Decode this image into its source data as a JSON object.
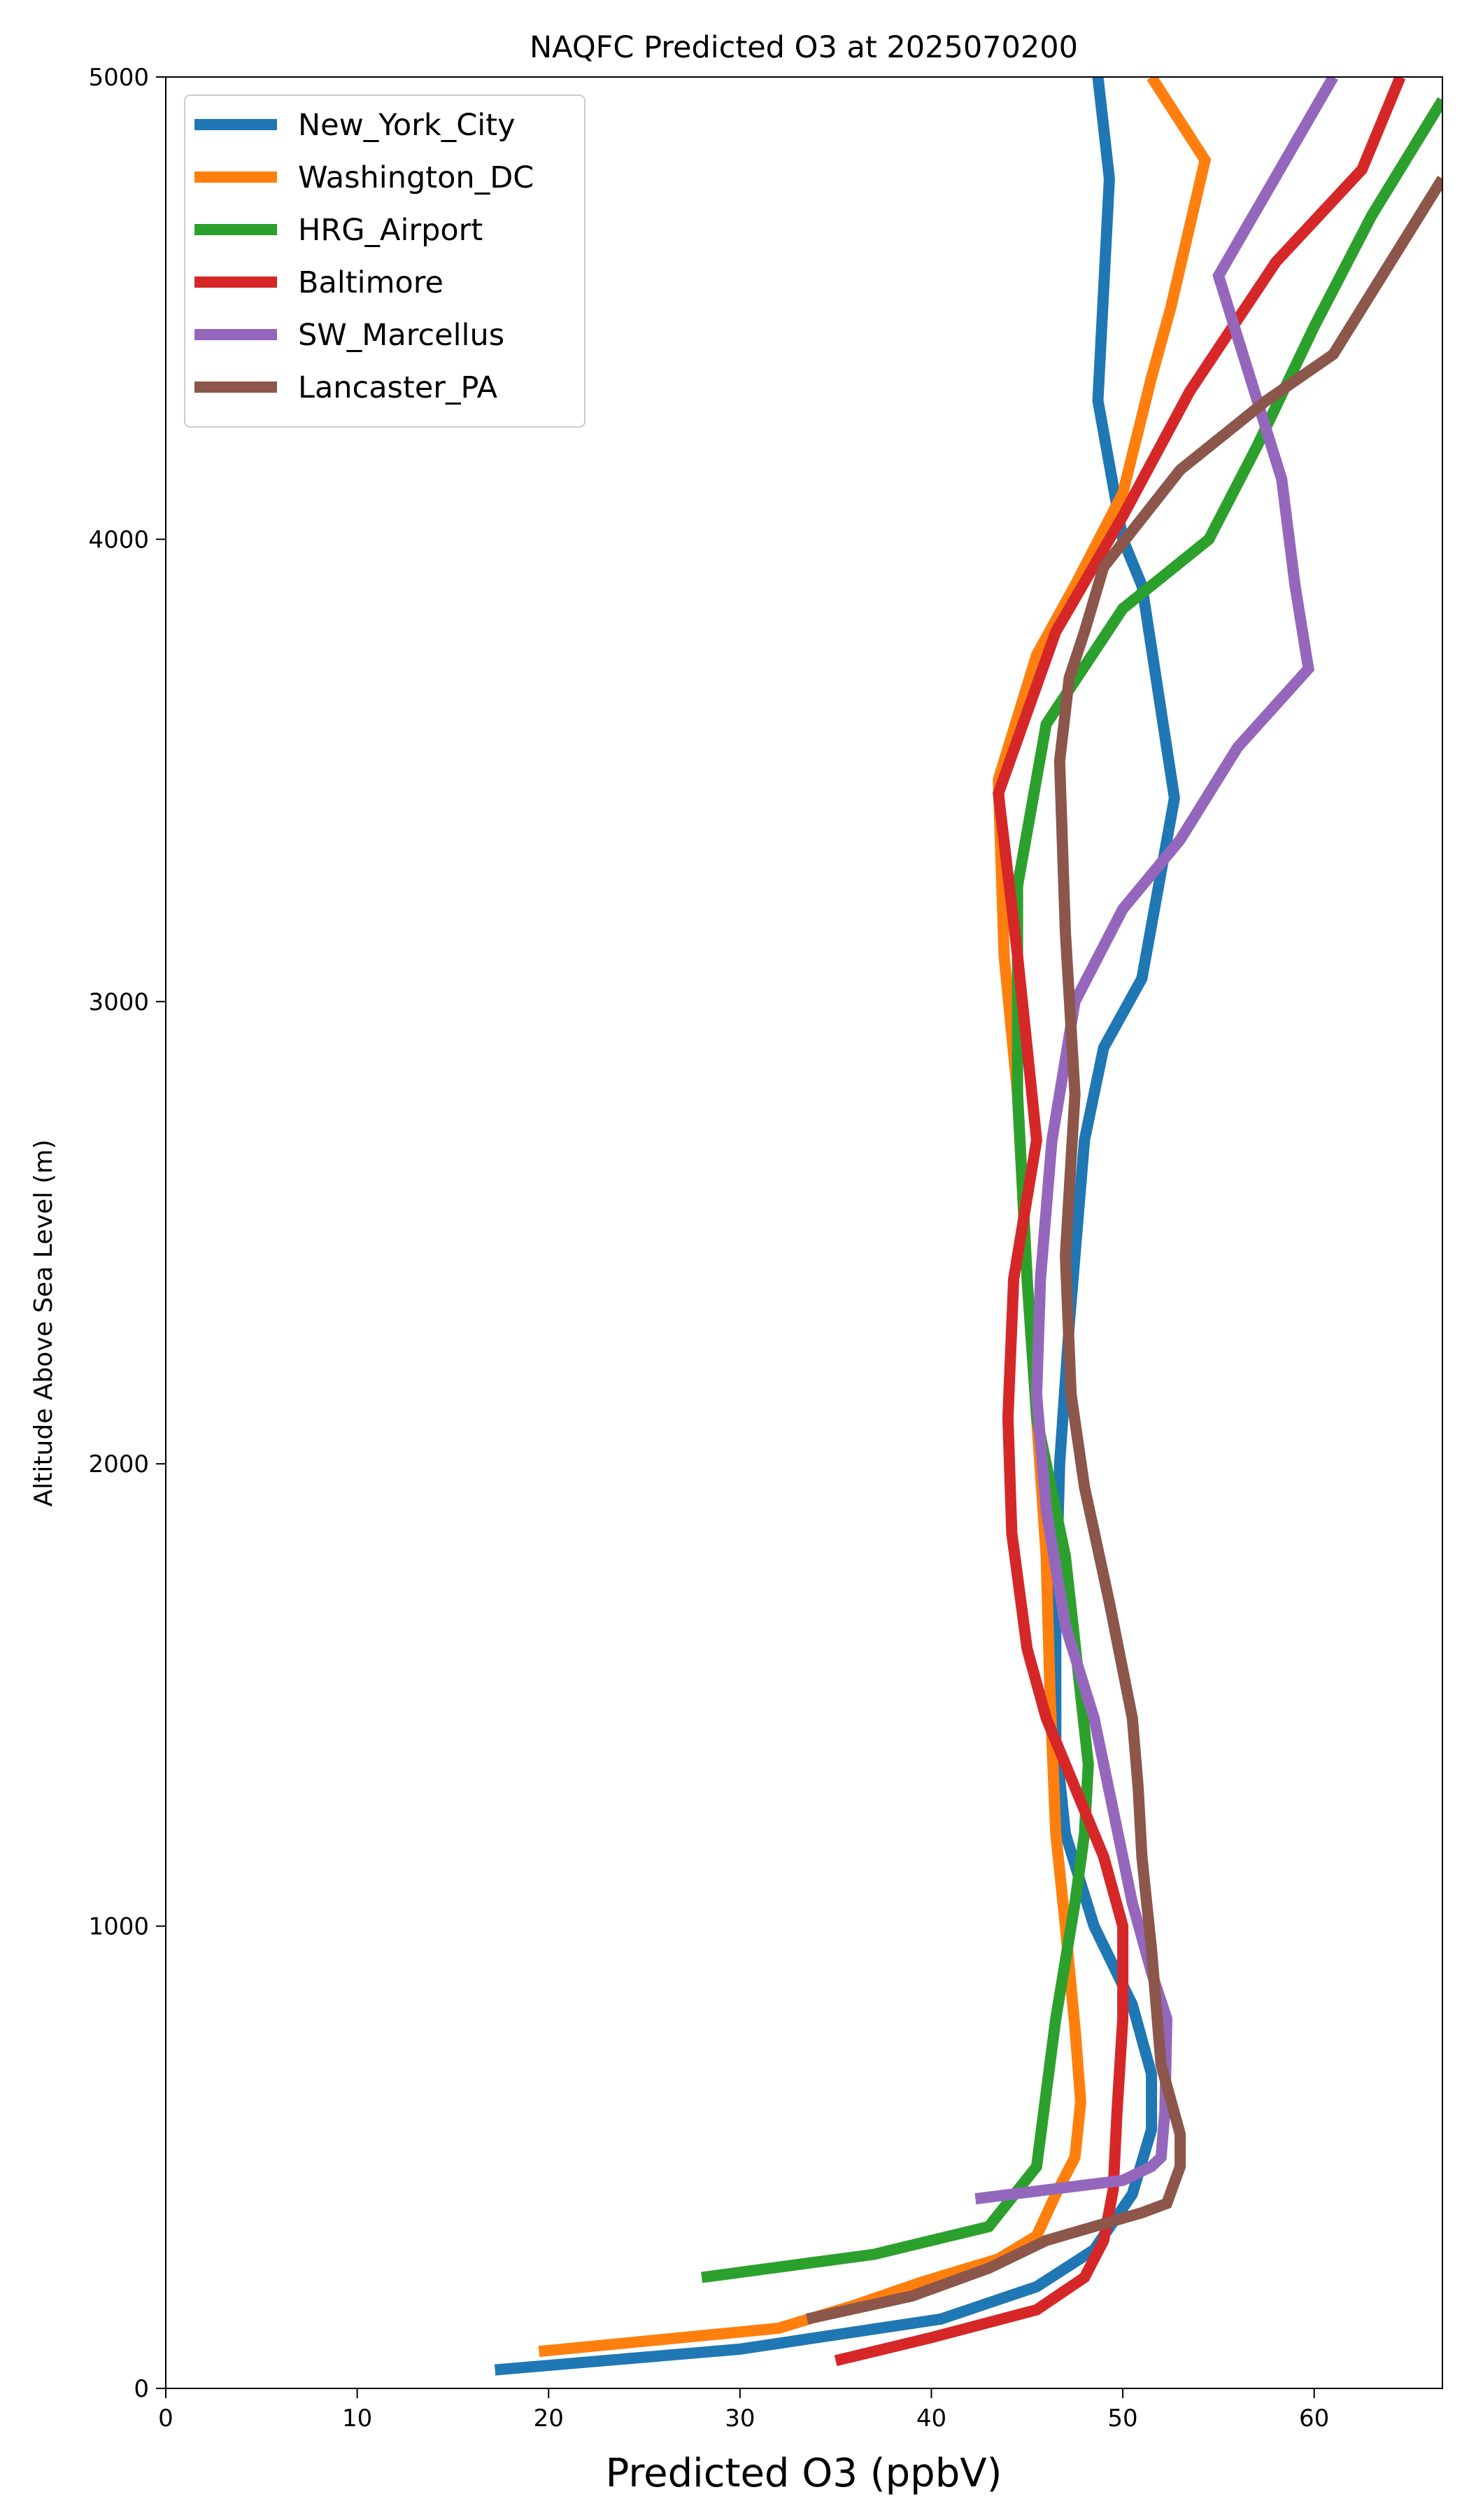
{
  "chart_data": {
    "type": "line",
    "title": "NAQFC Predicted O3 at 2025070200",
    "xlabel": "Predicted O3 (ppbV)",
    "ylabel": "Altitude Above Sea Level (m)",
    "xlim": [
      0,
      66.7
    ],
    "ylim": [
      0,
      5000
    ],
    "xticks": [
      0,
      10,
      20,
      30,
      40,
      50,
      60
    ],
    "yticks": [
      0,
      1000,
      2000,
      3000,
      4000,
      5000
    ],
    "grid": false,
    "legend_position": "top-left",
    "series": [
      {
        "name": "New_York_City",
        "color": "#1f77b4",
        "points": [
          [
            17.2,
            40
          ],
          [
            30,
            85
          ],
          [
            40.5,
            150
          ],
          [
            45.5,
            220
          ],
          [
            48.5,
            300
          ],
          [
            50.5,
            420
          ],
          [
            51.5,
            560
          ],
          [
            51.5,
            680
          ],
          [
            50.5,
            830
          ],
          [
            48.5,
            1000
          ],
          [
            47,
            1200
          ],
          [
            46.5,
            1400
          ],
          [
            46.5,
            1700
          ],
          [
            46.7,
            2000
          ],
          [
            47.2,
            2300
          ],
          [
            48,
            2700
          ],
          [
            49,
            2900
          ],
          [
            51,
            3050
          ],
          [
            52.7,
            3440
          ],
          [
            51,
            3900
          ],
          [
            50,
            4000
          ],
          [
            48.7,
            4300
          ],
          [
            49.3,
            4780
          ],
          [
            48.7,
            5000
          ]
        ]
      },
      {
        "name": "Washington_DC",
        "color": "#ff7f0e",
        "points": [
          [
            19.5,
            80
          ],
          [
            32,
            130
          ],
          [
            36,
            180
          ],
          [
            39.5,
            230
          ],
          [
            43.5,
            280
          ],
          [
            45.5,
            330
          ],
          [
            46.5,
            420
          ],
          [
            47.5,
            500
          ],
          [
            47.8,
            620
          ],
          [
            47.5,
            780
          ],
          [
            47,
            1000
          ],
          [
            46.5,
            1200
          ],
          [
            46.2,
            1500
          ],
          [
            46,
            1800
          ],
          [
            45.5,
            2100
          ],
          [
            45,
            2400
          ],
          [
            44.5,
            2800
          ],
          [
            43.8,
            3100
          ],
          [
            43.5,
            3480
          ],
          [
            45.5,
            3750
          ],
          [
            47.5,
            3900
          ],
          [
            50,
            4100
          ],
          [
            51.5,
            4350
          ],
          [
            52.5,
            4500
          ],
          [
            54.3,
            4820
          ],
          [
            51.5,
            5000
          ]
        ]
      },
      {
        "name": "HRG_Airport",
        "color": "#2ca02c",
        "points": [
          [
            28,
            240
          ],
          [
            37,
            290
          ],
          [
            43,
            350
          ],
          [
            45.5,
            480
          ],
          [
            46.5,
            800
          ],
          [
            47.5,
            1050
          ],
          [
            48,
            1200
          ],
          [
            48.2,
            1350
          ],
          [
            47,
            1800
          ],
          [
            45.5,
            2100
          ],
          [
            45,
            2400
          ],
          [
            44.5,
            2800
          ],
          [
            44.5,
            3250
          ],
          [
            46,
            3600
          ],
          [
            50,
            3850
          ],
          [
            54.5,
            4000
          ],
          [
            57,
            4200
          ],
          [
            60,
            4460
          ],
          [
            63,
            4700
          ],
          [
            66.7,
            4950
          ]
        ]
      },
      {
        "name": "Baltimore",
        "color": "#d62728",
        "points": [
          [
            35,
            60
          ],
          [
            40,
            110
          ],
          [
            45.5,
            170
          ],
          [
            48,
            240
          ],
          [
            49,
            320
          ],
          [
            49.5,
            430
          ],
          [
            49.7,
            600
          ],
          [
            50,
            800
          ],
          [
            50,
            1000
          ],
          [
            49,
            1150
          ],
          [
            47.5,
            1300
          ],
          [
            46,
            1450
          ],
          [
            45,
            1600
          ],
          [
            44.2,
            1850
          ],
          [
            44,
            2100
          ],
          [
            44.3,
            2400
          ],
          [
            45.5,
            2700
          ],
          [
            45,
            2900
          ],
          [
            44.5,
            3100
          ],
          [
            43.5,
            3450
          ],
          [
            46.5,
            3800
          ],
          [
            50,
            4050
          ],
          [
            53.5,
            4320
          ],
          [
            58,
            4600
          ],
          [
            62.5,
            4800
          ],
          [
            64.5,
            5000
          ]
        ]
      },
      {
        "name": "SW_Marcellus",
        "color": "#9467bd",
        "points": [
          [
            42.3,
            410
          ],
          [
            50,
            450
          ],
          [
            51.5,
            480
          ],
          [
            52,
            500
          ],
          [
            52.2,
            600
          ],
          [
            52.3,
            800
          ],
          [
            51.5,
            900
          ],
          [
            50.5,
            1050
          ],
          [
            49.5,
            1250
          ],
          [
            48.5,
            1450
          ],
          [
            47,
            1650
          ],
          [
            46,
            1900
          ],
          [
            45.5,
            2150
          ],
          [
            45.7,
            2400
          ],
          [
            46.3,
            2700
          ],
          [
            47.5,
            3000
          ],
          [
            50,
            3200
          ],
          [
            53,
            3350
          ],
          [
            56,
            3550
          ],
          [
            59.7,
            3720
          ],
          [
            59,
            3900
          ],
          [
            58.3,
            4130
          ],
          [
            55,
            4570
          ],
          [
            61,
            5000
          ]
        ]
      },
      {
        "name": "Lancaster_PA",
        "color": "#8c564b",
        "points": [
          [
            33.5,
            150
          ],
          [
            39,
            200
          ],
          [
            43,
            260
          ],
          [
            46,
            320
          ],
          [
            51,
            380
          ],
          [
            52.3,
            400
          ],
          [
            53,
            480
          ],
          [
            53,
            550
          ],
          [
            52,
            700
          ],
          [
            51.5,
            950
          ],
          [
            51,
            1150
          ],
          [
            50.8,
            1300
          ],
          [
            50.5,
            1450
          ],
          [
            49.3,
            1700
          ],
          [
            48,
            1950
          ],
          [
            47.3,
            2150
          ],
          [
            47,
            2450
          ],
          [
            47.5,
            2800
          ],
          [
            47,
            3150
          ],
          [
            46.7,
            3520
          ],
          [
            47.2,
            3700
          ],
          [
            48,
            3800
          ],
          [
            49,
            3940
          ],
          [
            53,
            4150
          ],
          [
            57.5,
            4300
          ],
          [
            61,
            4400
          ],
          [
            66.7,
            4780
          ]
        ]
      }
    ]
  }
}
